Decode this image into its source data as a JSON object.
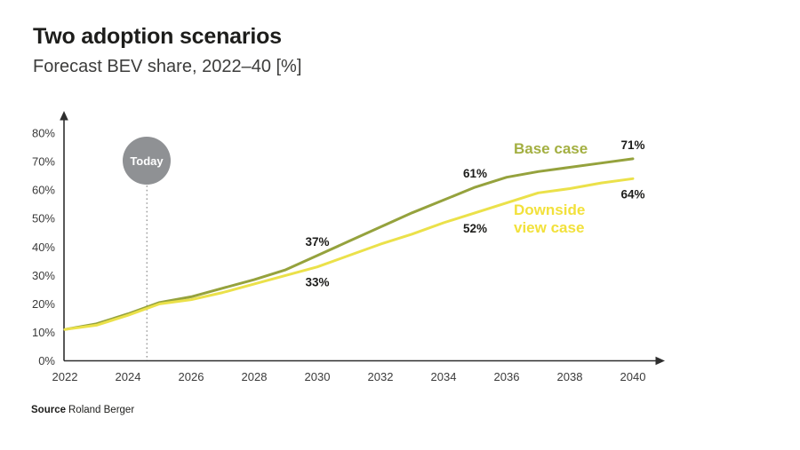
{
  "header": {
    "title": "Two adoption scenarios",
    "subtitle": "Forecast BEV share, 2022–40 [%]"
  },
  "today_marker": {
    "label": "Today",
    "year_position": 2024.6,
    "circle_color": "#8f9194",
    "text_color": "#ffffff",
    "dotted_line_color": "#9a9a9a"
  },
  "legend": [
    {
      "name": "Base case",
      "color": "#a3af41"
    },
    {
      "name": "Downside view case",
      "color": "#f2e13b"
    }
  ],
  "source": {
    "label": "Source",
    "text": "Roland Berger"
  },
  "chart_data": {
    "type": "line",
    "title": "Forecast BEV share, 2022–40 [%]",
    "xlabel": "",
    "ylabel": "",
    "xlim": [
      2022,
      2040
    ],
    "ylim": [
      0,
      80
    ],
    "grid": false,
    "axis_color": "#2e2e2e",
    "x": [
      2022,
      2023,
      2024,
      2025,
      2026,
      2027,
      2028,
      2029,
      2030,
      2031,
      2032,
      2033,
      2034,
      2035,
      2036,
      2037,
      2038,
      2039,
      2040
    ],
    "series": [
      {
        "name": "Base case",
        "color": "#95a23d",
        "values": [
          11,
          13,
          16.5,
          20.5,
          22.5,
          25.5,
          28.5,
          32,
          37,
          42,
          47,
          52,
          56.5,
          61,
          64.5,
          66.5,
          68,
          69.5,
          71
        ]
      },
      {
        "name": "Downside view case",
        "color": "#ebe14a",
        "values": [
          11,
          12.5,
          16,
          20,
          21.5,
          24,
          27,
          30,
          33,
          37,
          41,
          44.5,
          48.5,
          52,
          55.5,
          59,
          60.5,
          62.5,
          64
        ]
      }
    ],
    "xticks": [
      {
        "v": 2022,
        "label": "2022"
      },
      {
        "v": 2024,
        "label": "2024"
      },
      {
        "v": 2026,
        "label": "2026"
      },
      {
        "v": 2028,
        "label": "2028"
      },
      {
        "v": 2030,
        "label": "2030"
      },
      {
        "v": 2032,
        "label": "2032"
      },
      {
        "v": 2034,
        "label": "2034"
      },
      {
        "v": 2036,
        "label": "2036"
      },
      {
        "v": 2038,
        "label": "2038"
      },
      {
        "v": 2040,
        "label": "2040"
      }
    ],
    "yticks": [
      {
        "v": 0,
        "label": "0%"
      },
      {
        "v": 10,
        "label": "10%"
      },
      {
        "v": 20,
        "label": "20%"
      },
      {
        "v": 30,
        "label": "30%"
      },
      {
        "v": 40,
        "label": "40%"
      },
      {
        "v": 50,
        "label": "50%"
      },
      {
        "v": 60,
        "label": "60%"
      },
      {
        "v": 70,
        "label": "70%"
      },
      {
        "v": 80,
        "label": "80%"
      }
    ],
    "annotations": [
      {
        "series": 0,
        "year": 2030,
        "value": 37,
        "label": "37%",
        "placement": "above"
      },
      {
        "series": 1,
        "year": 2030,
        "value": 33,
        "label": "33%",
        "placement": "below"
      },
      {
        "series": 0,
        "year": 2035,
        "value": 61,
        "label": "61%",
        "placement": "above"
      },
      {
        "series": 1,
        "year": 2035,
        "value": 52,
        "label": "52%",
        "placement": "below"
      },
      {
        "series": 0,
        "year": 2040,
        "value": 71,
        "label": "71%",
        "placement": "above"
      },
      {
        "series": 1,
        "year": 2040,
        "value": 64,
        "label": "64%",
        "placement": "below"
      }
    ],
    "legend_position": "inline-near-lines"
  }
}
